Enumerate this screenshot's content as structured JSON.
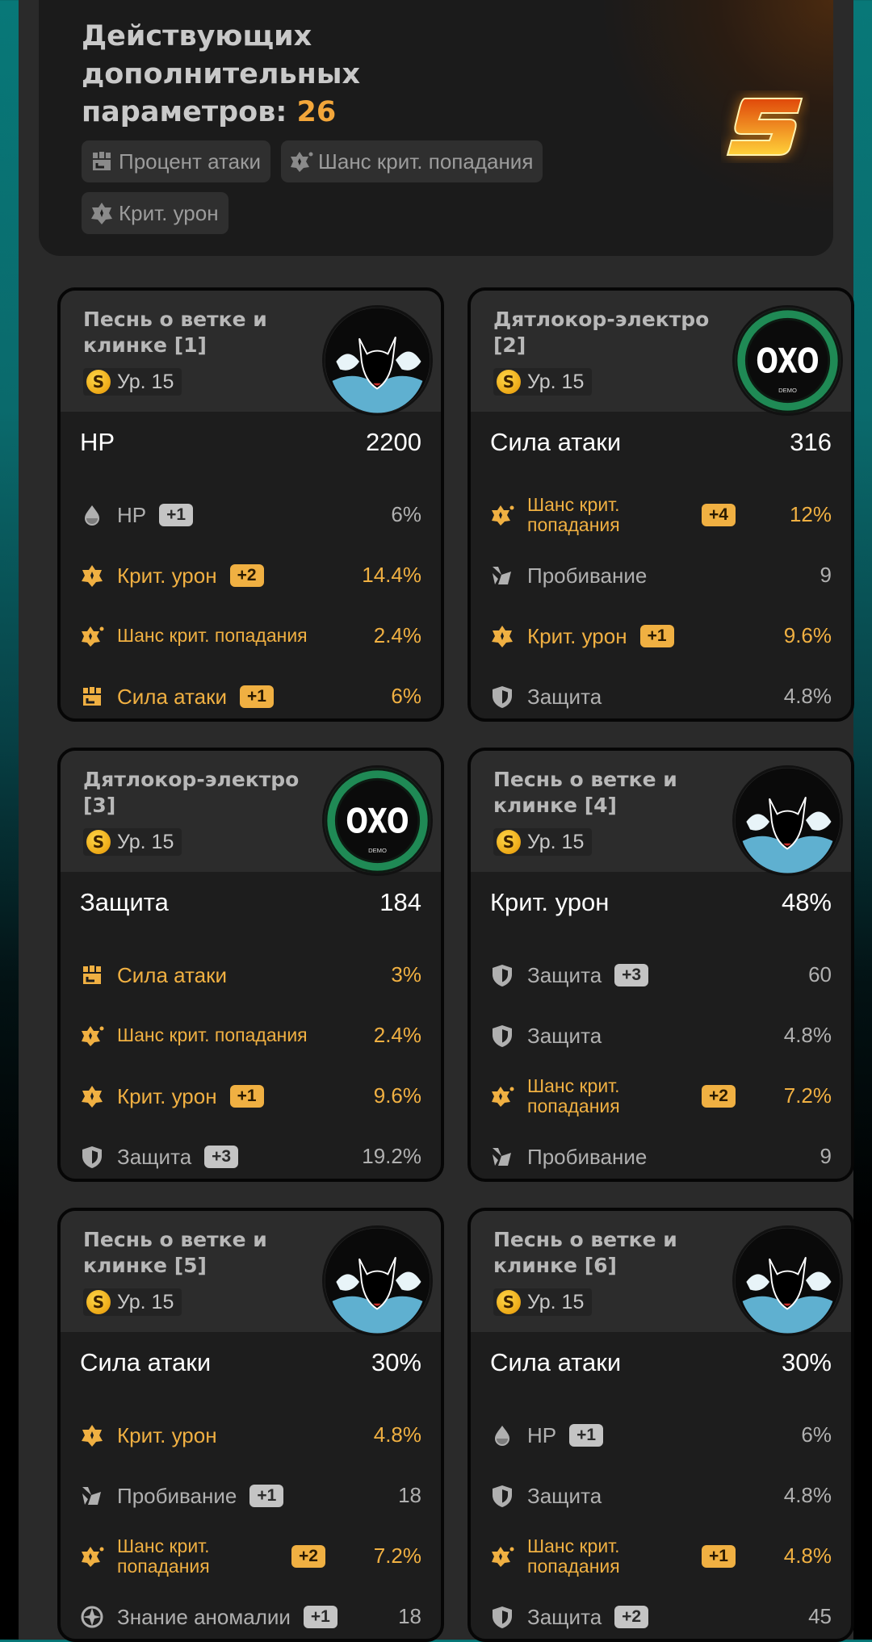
{
  "summary": {
    "title": "Действующих дополнительных параметров:",
    "count": "26",
    "rank_logo": "S",
    "tags": [
      {
        "icon": "attack-percent-icon",
        "label": "Процент атаки"
      },
      {
        "icon": "crit-rate-icon",
        "label": "Шанс крит. попадания"
      },
      {
        "icon": "crit-damage-icon",
        "label": "Крит. урон"
      }
    ]
  },
  "colors": {
    "accent": "#f0b042",
    "muted": "#b0b0b0",
    "card_bg": "#1d1d1d",
    "header_bg": "#2c2c2c"
  },
  "cards": [
    {
      "title": "Песнь о ветке и клинке [1]",
      "rank": "S",
      "level": "Ур. 15",
      "image": "katana",
      "main": {
        "label": "HP",
        "value": "2200"
      },
      "subs": [
        {
          "icon": "hp",
          "label": "HP",
          "badge": "+1",
          "value": "6%",
          "highlight": false
        },
        {
          "icon": "crit-dmg",
          "label": "Крит. урон",
          "badge": "+2",
          "value": "14.4%",
          "highlight": true
        },
        {
          "icon": "crit-rate",
          "label": "Шанс крит. попадания",
          "badge": "",
          "value": "2.4%",
          "highlight": true
        },
        {
          "icon": "atk",
          "label": "Сила атаки",
          "badge": "+1",
          "value": "6%",
          "highlight": true
        }
      ]
    },
    {
      "title": "Дятлокор-электро [2]",
      "rank": "S",
      "level": "Ур. 15",
      "image": "oxo",
      "logo_text": "OXO",
      "main": {
        "label": "Сила атаки",
        "value": "316"
      },
      "subs": [
        {
          "icon": "crit-rate",
          "label": "Шанс крит. попадания",
          "badge": "+4",
          "value": "12%",
          "highlight": true
        },
        {
          "icon": "pen",
          "label": "Пробивание",
          "badge": "",
          "value": "9",
          "highlight": false
        },
        {
          "icon": "crit-dmg",
          "label": "Крит. урон",
          "badge": "+1",
          "value": "9.6%",
          "highlight": true
        },
        {
          "icon": "def",
          "label": "Защита",
          "badge": "",
          "value": "4.8%",
          "highlight": false
        }
      ]
    },
    {
      "title": "Дятлокор-электро [3]",
      "rank": "S",
      "level": "Ур. 15",
      "image": "oxo",
      "logo_text": "OXO",
      "main": {
        "label": "Защита",
        "value": "184"
      },
      "subs": [
        {
          "icon": "atk",
          "label": "Сила атаки",
          "badge": "",
          "value": "3%",
          "highlight": true
        },
        {
          "icon": "crit-rate",
          "label": "Шанс крит. попадания",
          "badge": "",
          "value": "2.4%",
          "highlight": true
        },
        {
          "icon": "crit-dmg",
          "label": "Крит. урон",
          "badge": "+1",
          "value": "9.6%",
          "highlight": true
        },
        {
          "icon": "def",
          "label": "Защита",
          "badge": "+3",
          "value": "19.2%",
          "highlight": false
        }
      ]
    },
    {
      "title": "Песнь о ветке и клинке [4]",
      "rank": "S",
      "level": "Ур. 15",
      "image": "katana",
      "main": {
        "label": "Крит. урон",
        "value": "48%"
      },
      "subs": [
        {
          "icon": "def",
          "label": "Защита",
          "badge": "+3",
          "value": "60",
          "highlight": false
        },
        {
          "icon": "def",
          "label": "Защита",
          "badge": "",
          "value": "4.8%",
          "highlight": false
        },
        {
          "icon": "crit-rate",
          "label": "Шанс крит. попадания",
          "badge": "+2",
          "value": "7.2%",
          "highlight": true
        },
        {
          "icon": "pen",
          "label": "Пробивание",
          "badge": "",
          "value": "9",
          "highlight": false
        }
      ]
    },
    {
      "title": "Песнь о ветке и клинке [5]",
      "rank": "S",
      "level": "Ур. 15",
      "image": "katana",
      "main": {
        "label": "Сила атаки",
        "value": "30%"
      },
      "subs": [
        {
          "icon": "crit-dmg",
          "label": "Крит. урон",
          "badge": "",
          "value": "4.8%",
          "highlight": true
        },
        {
          "icon": "pen",
          "label": "Пробивание",
          "badge": "+1",
          "value": "18",
          "highlight": false
        },
        {
          "icon": "crit-rate",
          "label": "Шанс крит. попадания",
          "badge": "+2",
          "value": "7.2%",
          "highlight": true
        },
        {
          "icon": "anomaly",
          "label": "Знание аномалии",
          "badge": "+1",
          "value": "18",
          "highlight": false
        }
      ]
    },
    {
      "title": "Песнь о ветке и клинке [6]",
      "rank": "S",
      "level": "Ур. 15",
      "image": "katana",
      "main": {
        "label": "Сила атаки",
        "value": "30%"
      },
      "subs": [
        {
          "icon": "hp",
          "label": "HP",
          "badge": "+1",
          "value": "6%",
          "highlight": false
        },
        {
          "icon": "def",
          "label": "Защита",
          "badge": "",
          "value": "4.8%",
          "highlight": false
        },
        {
          "icon": "crit-rate",
          "label": "Шанс крит. попадания",
          "badge": "+1",
          "value": "4.8%",
          "highlight": true
        },
        {
          "icon": "def",
          "label": "Защита",
          "badge": "+2",
          "value": "45",
          "highlight": false
        }
      ]
    }
  ]
}
